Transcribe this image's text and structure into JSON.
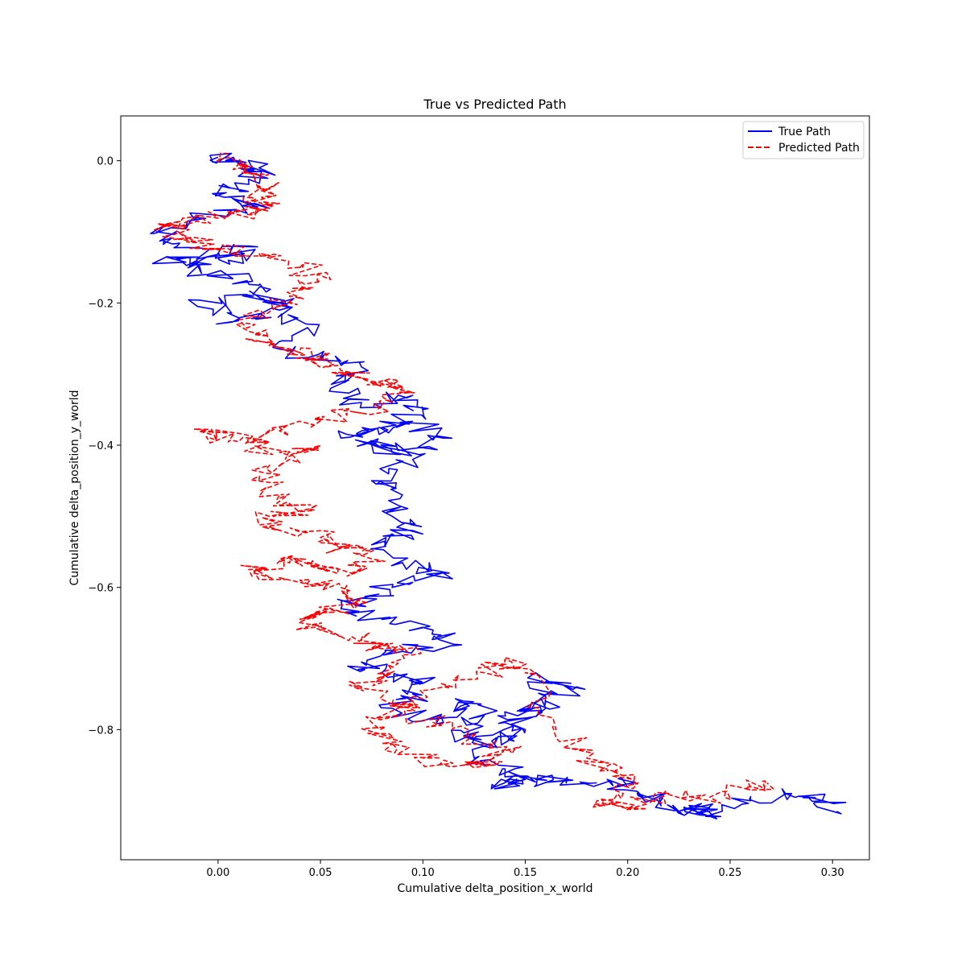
{
  "chart_data": {
    "type": "line",
    "title": "True vs Predicted Path",
    "xlabel": "Cumulative delta_position_x_world",
    "ylabel": "Cumulative delta_position_y_world",
    "xlim": [
      -0.0475,
      0.318
    ],
    "ylim": [
      -0.983,
      0.063
    ],
    "xticks": [
      0.0,
      0.05,
      0.1,
      0.15,
      0.2,
      0.25,
      0.3
    ],
    "xtick_labels": [
      "0.00",
      "0.05",
      "0.10",
      "0.15",
      "0.20",
      "0.25",
      "0.30"
    ],
    "yticks": [
      0.0,
      -0.2,
      -0.4,
      -0.6,
      -0.8
    ],
    "ytick_labels": [
      "0.0",
      "−0.2",
      "−0.4",
      "−0.6",
      "−0.8"
    ],
    "grid": false,
    "legend_position": "top-right",
    "series": [
      {
        "name": "True Path",
        "color": "#0000ff",
        "style": "solid",
        "noise": 0.009,
        "seed": 11,
        "x": [
          0.0,
          0.008,
          0.02,
          0.015,
          0.004,
          0.018,
          0.0,
          -0.015,
          -0.03,
          -0.02,
          0.005,
          0.015,
          -0.01,
          -0.025,
          -0.005,
          0.02,
          0.03,
          0.012,
          -0.01,
          0.01,
          0.03,
          0.045,
          0.03,
          0.05,
          0.07,
          0.055,
          0.07,
          0.095,
          0.1,
          0.08,
          0.06,
          0.09,
          0.11,
          0.085,
          0.07,
          0.095,
          0.075,
          0.09,
          0.085,
          0.095,
          0.075,
          0.09,
          0.11,
          0.085,
          0.07,
          0.06,
          0.08,
          0.105,
          0.115,
          0.09,
          0.07,
          0.08,
          0.1,
          0.095,
          0.085,
          0.11,
          0.12,
          0.13,
          0.115,
          0.135,
          0.15,
          0.14,
          0.16,
          0.175,
          0.155,
          0.16,
          0.14,
          0.125,
          0.145,
          0.15,
          0.135,
          0.155,
          0.17,
          0.19,
          0.2,
          0.215,
          0.225,
          0.24,
          0.235,
          0.26,
          0.28,
          0.295,
          0.302
        ],
        "y": [
          0.005,
          0.002,
          -0.01,
          -0.03,
          -0.045,
          -0.06,
          -0.07,
          -0.085,
          -0.1,
          -0.12,
          -0.14,
          -0.12,
          -0.145,
          -0.135,
          -0.16,
          -0.175,
          -0.2,
          -0.19,
          -0.205,
          -0.225,
          -0.21,
          -0.23,
          -0.265,
          -0.28,
          -0.29,
          -0.32,
          -0.34,
          -0.33,
          -0.35,
          -0.375,
          -0.39,
          -0.37,
          -0.39,
          -0.41,
          -0.395,
          -0.42,
          -0.45,
          -0.47,
          -0.5,
          -0.52,
          -0.54,
          -0.565,
          -0.58,
          -0.6,
          -0.615,
          -0.63,
          -0.645,
          -0.66,
          -0.68,
          -0.69,
          -0.705,
          -0.72,
          -0.735,
          -0.75,
          -0.77,
          -0.79,
          -0.76,
          -0.78,
          -0.81,
          -0.82,
          -0.8,
          -0.775,
          -0.76,
          -0.74,
          -0.72,
          -0.77,
          -0.79,
          -0.84,
          -0.855,
          -0.87,
          -0.88,
          -0.87,
          -0.875,
          -0.87,
          -0.885,
          -0.9,
          -0.915,
          -0.91,
          -0.92,
          -0.9,
          -0.89,
          -0.9,
          -0.915
        ]
      },
      {
        "name": "Predicted Path",
        "color": "#ff0000",
        "style": "dashed",
        "noise": 0.009,
        "seed": 37,
        "x": [
          0.005,
          0.012,
          0.02,
          0.025,
          0.018,
          0.03,
          0.02,
          0.005,
          -0.01,
          -0.025,
          -0.015,
          0.0,
          0.02,
          0.04,
          0.05,
          0.035,
          0.02,
          0.015,
          0.025,
          0.04,
          0.05,
          0.06,
          0.075,
          0.09,
          0.085,
          0.07,
          0.05,
          0.03,
          0.015,
          -0.005,
          0.01,
          0.03,
          0.05,
          0.035,
          0.02,
          0.03,
          0.045,
          0.025,
          0.03,
          0.05,
          0.06,
          0.075,
          0.065,
          0.045,
          0.03,
          0.015,
          0.04,
          0.06,
          0.07,
          0.055,
          0.04,
          0.05,
          0.07,
          0.085,
          0.095,
          0.085,
          0.07,
          0.085,
          0.105,
          0.12,
          0.14,
          0.135,
          0.12,
          0.1,
          0.085,
          0.075,
          0.095,
          0.11,
          0.13,
          0.14,
          0.15,
          0.165,
          0.18,
          0.195,
          0.205,
          0.185,
          0.2,
          0.22,
          0.24,
          0.26,
          0.268
        ],
        "y": [
          0.01,
          -0.005,
          -0.02,
          -0.04,
          -0.055,
          -0.06,
          -0.07,
          -0.075,
          -0.085,
          -0.09,
          -0.11,
          -0.125,
          -0.13,
          -0.15,
          -0.17,
          -0.19,
          -0.21,
          -0.24,
          -0.26,
          -0.27,
          -0.28,
          -0.295,
          -0.31,
          -0.32,
          -0.34,
          -0.355,
          -0.36,
          -0.38,
          -0.39,
          -0.38,
          -0.395,
          -0.41,
          -0.4,
          -0.42,
          -0.45,
          -0.47,
          -0.49,
          -0.5,
          -0.52,
          -0.53,
          -0.545,
          -0.56,
          -0.58,
          -0.57,
          -0.56,
          -0.575,
          -0.59,
          -0.6,
          -0.615,
          -0.63,
          -0.645,
          -0.66,
          -0.675,
          -0.685,
          -0.695,
          -0.72,
          -0.74,
          -0.765,
          -0.79,
          -0.81,
          -0.83,
          -0.84,
          -0.85,
          -0.84,
          -0.82,
          -0.79,
          -0.76,
          -0.74,
          -0.72,
          -0.705,
          -0.72,
          -0.8,
          -0.84,
          -0.86,
          -0.875,
          -0.9,
          -0.91,
          -0.89,
          -0.895,
          -0.88,
          -0.875
        ]
      }
    ]
  }
}
